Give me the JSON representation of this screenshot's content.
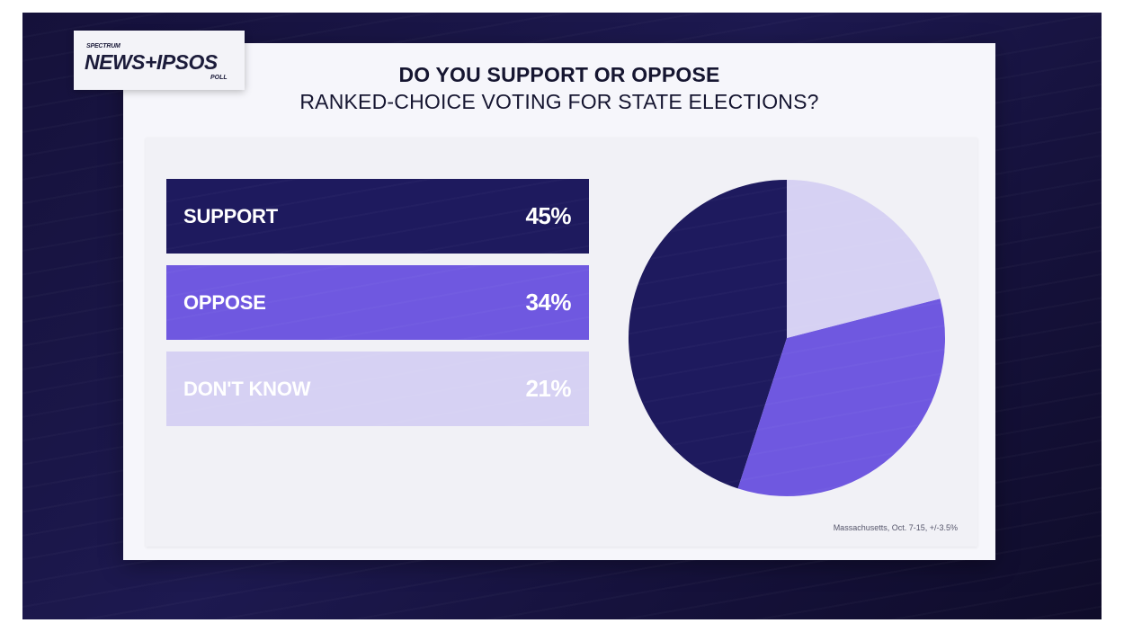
{
  "logo": {
    "top": "SPECTRUM",
    "main": "NEWS+IPSOS",
    "sub": "POLL"
  },
  "title_line1": "DO YOU SUPPORT OR OPPOSE",
  "title_line2": "RANKED-CHOICE VOTING FOR STATE ELECTIONS?",
  "footnote": "Massachusetts, Oct. 7-15, +/-3.5%",
  "colors": {
    "support": "#1e1a5e",
    "oppose": "#6f58e0",
    "dont_know": "#d6d1f3",
    "dont_know_text": "#ffffff"
  },
  "chart_data": {
    "type": "pie",
    "title": "DO YOU SUPPORT OR OPPOSE RANKED-CHOICE VOTING FOR STATE ELECTIONS?",
    "categories": [
      "SUPPORT",
      "OPPOSE",
      "DON'T KNOW"
    ],
    "values": [
      45,
      34,
      21
    ],
    "labels": [
      "45%",
      "34%",
      "21%"
    ]
  }
}
